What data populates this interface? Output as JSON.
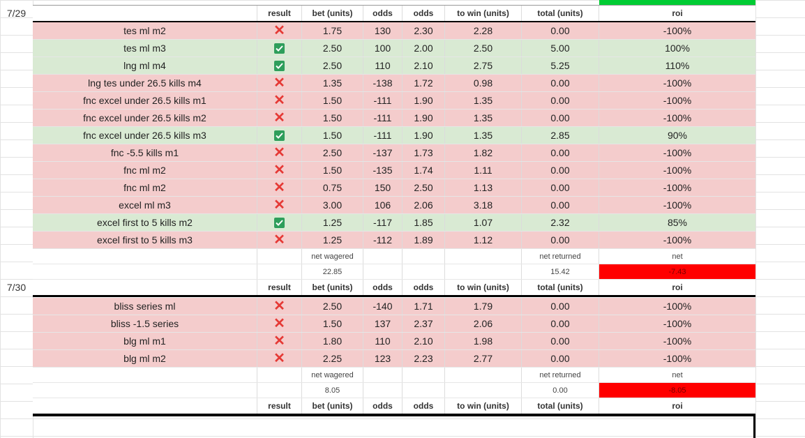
{
  "columns": [
    "result",
    "bet (units)",
    "odds",
    "odds",
    "to win (units)",
    "total (units)",
    "roi"
  ],
  "summary_labels": {
    "wagered": "net wagered",
    "returned": "net returned",
    "net": "net"
  },
  "colors": {
    "loss": "#f4cccc",
    "win": "#d9ead3",
    "negative": "#ff0000",
    "check": "#2e9e5b",
    "cross": "#e53935"
  },
  "icons": {
    "win": "checkbox-check-icon",
    "loss": "cross-icon"
  },
  "sections": [
    {
      "date": "7/29",
      "bets": [
        {
          "name": "tes ml m2",
          "result": "loss",
          "bet": "1.75",
          "odds_us": "130",
          "odds_dec": "2.30",
          "to_win": "2.28",
          "total": "0.00",
          "roi": "-100%"
        },
        {
          "name": "tes ml m3",
          "result": "win",
          "bet": "2.50",
          "odds_us": "100",
          "odds_dec": "2.00",
          "to_win": "2.50",
          "total": "5.00",
          "roi": "100%"
        },
        {
          "name": "lng ml m4",
          "result": "win",
          "bet": "2.50",
          "odds_us": "110",
          "odds_dec": "2.10",
          "to_win": "2.75",
          "total": "5.25",
          "roi": "110%"
        },
        {
          "name": "lng tes under 26.5 kills m4",
          "result": "loss",
          "bet": "1.35",
          "odds_us": "-138",
          "odds_dec": "1.72",
          "to_win": "0.98",
          "total": "0.00",
          "roi": "-100%"
        },
        {
          "name": "fnc excel under 26.5 kills m1",
          "result": "loss",
          "bet": "1.50",
          "odds_us": "-111",
          "odds_dec": "1.90",
          "to_win": "1.35",
          "total": "0.00",
          "roi": "-100%"
        },
        {
          "name": "fnc excel under 26.5 kills m2",
          "result": "loss",
          "bet": "1.50",
          "odds_us": "-111",
          "odds_dec": "1.90",
          "to_win": "1.35",
          "total": "0.00",
          "roi": "-100%"
        },
        {
          "name": "fnc excel under 26.5 kills m3",
          "result": "win",
          "bet": "1.50",
          "odds_us": "-111",
          "odds_dec": "1.90",
          "to_win": "1.35",
          "total": "2.85",
          "roi": "90%"
        },
        {
          "name": "fnc -5.5 kills m1",
          "result": "loss",
          "bet": "2.50",
          "odds_us": "-137",
          "odds_dec": "1.73",
          "to_win": "1.82",
          "total": "0.00",
          "roi": "-100%"
        },
        {
          "name": "fnc ml m2",
          "result": "loss",
          "bet": "1.50",
          "odds_us": "-135",
          "odds_dec": "1.74",
          "to_win": "1.11",
          "total": "0.00",
          "roi": "-100%"
        },
        {
          "name": "fnc ml m2",
          "result": "loss",
          "bet": "0.75",
          "odds_us": "150",
          "odds_dec": "2.50",
          "to_win": "1.13",
          "total": "0.00",
          "roi": "-100%"
        },
        {
          "name": "excel ml m3",
          "result": "loss",
          "bet": "3.00",
          "odds_us": "106",
          "odds_dec": "2.06",
          "to_win": "3.18",
          "total": "0.00",
          "roi": "-100%"
        },
        {
          "name": "excel first to 5 kills m2",
          "result": "win",
          "bet": "1.25",
          "odds_us": "-117",
          "odds_dec": "1.85",
          "to_win": "1.07",
          "total": "2.32",
          "roi": "85%"
        },
        {
          "name": "excel first to 5 kills m3",
          "result": "loss",
          "bet": "1.25",
          "odds_us": "-112",
          "odds_dec": "1.89",
          "to_win": "1.12",
          "total": "0.00",
          "roi": "-100%"
        }
      ],
      "net_wagered": "22.85",
      "net_returned": "15.42",
      "net": "-7.43"
    },
    {
      "date": "7/30",
      "bets": [
        {
          "name": "bliss series ml",
          "result": "loss",
          "bet": "2.50",
          "odds_us": "-140",
          "odds_dec": "1.71",
          "to_win": "1.79",
          "total": "0.00",
          "roi": "-100%"
        },
        {
          "name": "bliss -1.5 series",
          "result": "loss",
          "bet": "1.50",
          "odds_us": "137",
          "odds_dec": "2.37",
          "to_win": "2.06",
          "total": "0.00",
          "roi": "-100%"
        },
        {
          "name": "blg ml m1",
          "result": "loss",
          "bet": "1.80",
          "odds_us": "110",
          "odds_dec": "2.10",
          "to_win": "1.98",
          "total": "0.00",
          "roi": "-100%"
        },
        {
          "name": "blg ml m2",
          "result": "loss",
          "bet": "2.25",
          "odds_us": "123",
          "odds_dec": "2.23",
          "to_win": "2.77",
          "total": "0.00",
          "roi": "-100%"
        }
      ],
      "net_wagered": "8.05",
      "net_returned": "0.00",
      "net": "-8.05"
    }
  ]
}
